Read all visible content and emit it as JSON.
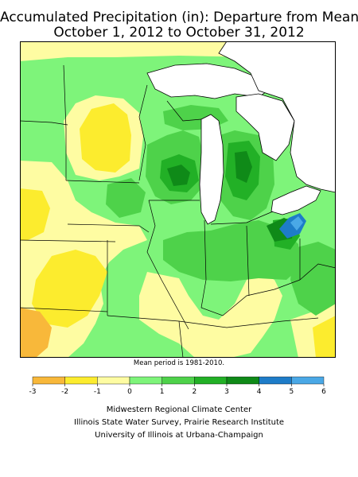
{
  "title": {
    "line1": "Accumulated Precipitation (in): Departure from Mean",
    "line2": "October 1, 2012 to October 31, 2012"
  },
  "map_note": "Mean period is 1981-2010.",
  "legend": {
    "ticks": [
      "-3",
      "-2",
      "-1",
      "0",
      "1",
      "2",
      "3",
      "4",
      "5",
      "6"
    ],
    "bins": [
      {
        "range": [
          -3,
          -2
        ],
        "color": "#f8b83a"
      },
      {
        "range": [
          -2,
          -1
        ],
        "color": "#fcec2e"
      },
      {
        "range": [
          -1,
          0
        ],
        "color": "#fefca2"
      },
      {
        "range": [
          0,
          1
        ],
        "color": "#7ef47a"
      },
      {
        "range": [
          1,
          2
        ],
        "color": "#4ed24a"
      },
      {
        "range": [
          2,
          3
        ],
        "color": "#22b026"
      },
      {
        "range": [
          3,
          4
        ],
        "color": "#0f8a18"
      },
      {
        "range": [
          4,
          5
        ],
        "color": "#1e7cc8"
      },
      {
        "range": [
          5,
          6
        ],
        "color": "#4aa8e6"
      }
    ]
  },
  "credits": {
    "line1": "Midwestern Regional Climate Center",
    "line2": "Illinois State Water Survey, Prairie Research Institute",
    "line3": "University of Illinois at Urbana-Champaign"
  },
  "map_colors": {
    "water": "#ffffff",
    "boundary": "#000000",
    "frame": "#000000"
  }
}
